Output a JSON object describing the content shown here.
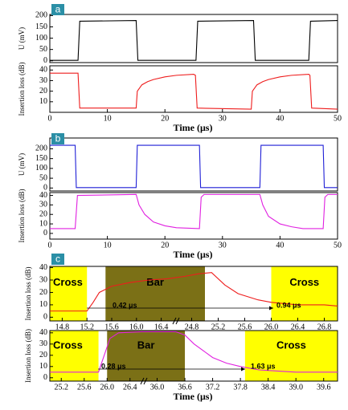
{
  "chart_data": [
    {
      "panel": "a",
      "type": "line",
      "ylabel": "U (mV)",
      "xlim": [
        0,
        50
      ],
      "ylim": [
        -8,
        205
      ],
      "yticks": [
        0,
        50,
        100,
        150,
        200
      ],
      "series": [
        {
          "color": "#000000",
          "x": [
            0,
            4.9,
            5.2,
            15,
            15.3,
            25.4,
            25.7,
            35.4,
            35.7,
            45,
            45.3,
            50
          ],
          "values": [
            2,
            2,
            175,
            178,
            2,
            2,
            175,
            178,
            2,
            2,
            175,
            178
          ]
        }
      ]
    },
    {
      "type": "line",
      "ylabel": "Insertion loss (dB)",
      "xlabel": "Time (μs)",
      "xlim": [
        0,
        50
      ],
      "xticks": [
        0,
        10,
        20,
        30,
        40,
        50
      ],
      "ylim": [
        0,
        44
      ],
      "yticks": [
        10,
        20,
        30,
        40
      ],
      "series": [
        {
          "color": "#ee1c1c",
          "x": [
            0,
            4.9,
            5.2,
            15,
            15.2,
            16,
            17,
            18,
            20,
            22,
            25,
            25.3,
            25.6,
            35,
            35.2,
            36,
            37,
            38,
            40,
            42,
            45,
            45.2,
            45.5,
            50
          ],
          "values": [
            37,
            37,
            4,
            4,
            20,
            26,
            29,
            31,
            33.5,
            35,
            36,
            35,
            4,
            3,
            20,
            26,
            29,
            31,
            33.5,
            35,
            36,
            35,
            4,
            3
          ]
        }
      ]
    },
    {
      "panel": "b",
      "type": "line",
      "ylabel": "U (mV)",
      "xlim": [
        0,
        50
      ],
      "ylim": [
        -15,
        255
      ],
      "yticks": [
        0,
        50,
        100,
        150,
        200
      ],
      "series": [
        {
          "color": "#1f1fd6",
          "x": [
            0,
            4.4,
            4.6,
            15,
            15.2,
            26,
            26.2,
            36.5,
            36.7,
            47.5,
            47.7,
            50
          ],
          "values": [
            218,
            218,
            2,
            2,
            218,
            218,
            2,
            2,
            218,
            218,
            2,
            2
          ]
        }
      ]
    },
    {
      "type": "line",
      "ylabel": "Insertion loss (dB)",
      "xlabel": "Time (μs)",
      "xlim": [
        0,
        50
      ],
      "xticks": [
        0,
        10,
        20,
        30,
        40,
        50
      ],
      "ylim": [
        -6,
        43
      ],
      "yticks": [
        0,
        10,
        20,
        30,
        40
      ],
      "series": [
        {
          "color": "#e020e0",
          "x": [
            0,
            4.4,
            4.8,
            15,
            15.5,
            16.5,
            18,
            20,
            22,
            26,
            26.3,
            26.8,
            36.5,
            37,
            38,
            40,
            42,
            44,
            47.5,
            47.8,
            48.3,
            50
          ],
          "values": [
            5,
            5,
            40,
            41,
            30,
            20,
            12,
            8,
            6,
            5,
            38,
            41,
            41,
            30,
            18,
            10,
            7,
            5,
            5,
            38,
            41,
            41
          ]
        }
      ]
    },
    {
      "panel": "c",
      "type": "line",
      "ylabel": "Insertion loss (dB)",
      "ylim": [
        -3,
        41
      ],
      "yticks": [
        0,
        10,
        20,
        30,
        40
      ],
      "xsegments": [
        {
          "xlim": [
            14.6,
            16.6
          ],
          "xticks": [
            14.8,
            15.2,
            15.6,
            {
              "value": 16.0,
              "label": "16.0"
            },
            16.4
          ]
        },
        {
          "xlim": [
            24.6,
            27.0
          ],
          "xticks": [
            24.8,
            25.2,
            25.6,
            {
              "value": 26.0,
              "label": "26.0"
            },
            26.4,
            26.8
          ]
        }
      ],
      "regions": [
        {
          "label": "Cross",
          "x": [
            14.6,
            15.2
          ],
          "color": "#ffff00"
        },
        {
          "label": "Bar",
          "x": [
            15.5,
            25.0
          ],
          "color": "#7b7016"
        },
        {
          "label": "Cross",
          "x": [
            26.0,
            27.0
          ],
          "color": "#ffff00"
        }
      ],
      "annotations": [
        "0.42 μs",
        "0.94 μs"
      ],
      "series": [
        {
          "color": "#ee1c1c",
          "x": [
            14.6,
            15.0,
            15.2,
            15.3,
            15.4,
            15.6,
            15.9,
            16.2,
            16.5,
            24.7,
            24.9,
            25.1,
            25.3,
            25.5,
            25.8,
            26.0,
            26.4,
            26.8,
            27.0
          ],
          "values": [
            5,
            5,
            5,
            12,
            20,
            25,
            28,
            30,
            31,
            33,
            35,
            36,
            26,
            19,
            14,
            12,
            10,
            10,
            9
          ]
        }
      ]
    },
    {
      "type": "line",
      "ylabel": "Insertion loss (dB)",
      "xlabel": "Time (μs)",
      "ylim": [
        -3,
        42
      ],
      "yticks": [
        0,
        10,
        20,
        30,
        40
      ],
      "xsegments": [
        {
          "xlim": [
            25.0,
            26.6
          ],
          "xticks": [
            25.2,
            25.6,
            {
              "value": 26.0,
              "label": "26.0"
            },
            26.4
          ]
        },
        {
          "xlim": [
            35.8,
            39.9
          ],
          "xticks": [
            {
              "value": 36.0,
              "label": "36.0"
            },
            36.6,
            37.2,
            37.8,
            38.4,
            {
              "value": 39.0,
              "label": "39.0"
            },
            39.6
          ]
        }
      ],
      "regions": [
        {
          "label": "Cross",
          "x": [
            25.0,
            25.85
          ],
          "color": "#ffff00"
        },
        {
          "label": "Bar",
          "x": [
            26.0,
            36.6
          ],
          "color": "#7b7016"
        },
        {
          "label": "Cross",
          "x": [
            37.9,
            39.9
          ],
          "color": "#ffff00"
        }
      ],
      "annotations": [
        "0.28 μs",
        "1.63 μs"
      ],
      "series": [
        {
          "color": "#e020e0",
          "x": [
            25.0,
            25.7,
            25.85,
            25.95,
            26.05,
            26.2,
            26.6,
            35.8,
            36.4,
            36.6,
            36.8,
            37.0,
            37.2,
            37.5,
            37.8,
            38.2,
            38.6,
            39.0,
            39.9
          ],
          "values": [
            5,
            5,
            5,
            20,
            35,
            40,
            41,
            41,
            41,
            38,
            30,
            24,
            18,
            13,
            10,
            7,
            6,
            5,
            5
          ]
        }
      ]
    }
  ]
}
